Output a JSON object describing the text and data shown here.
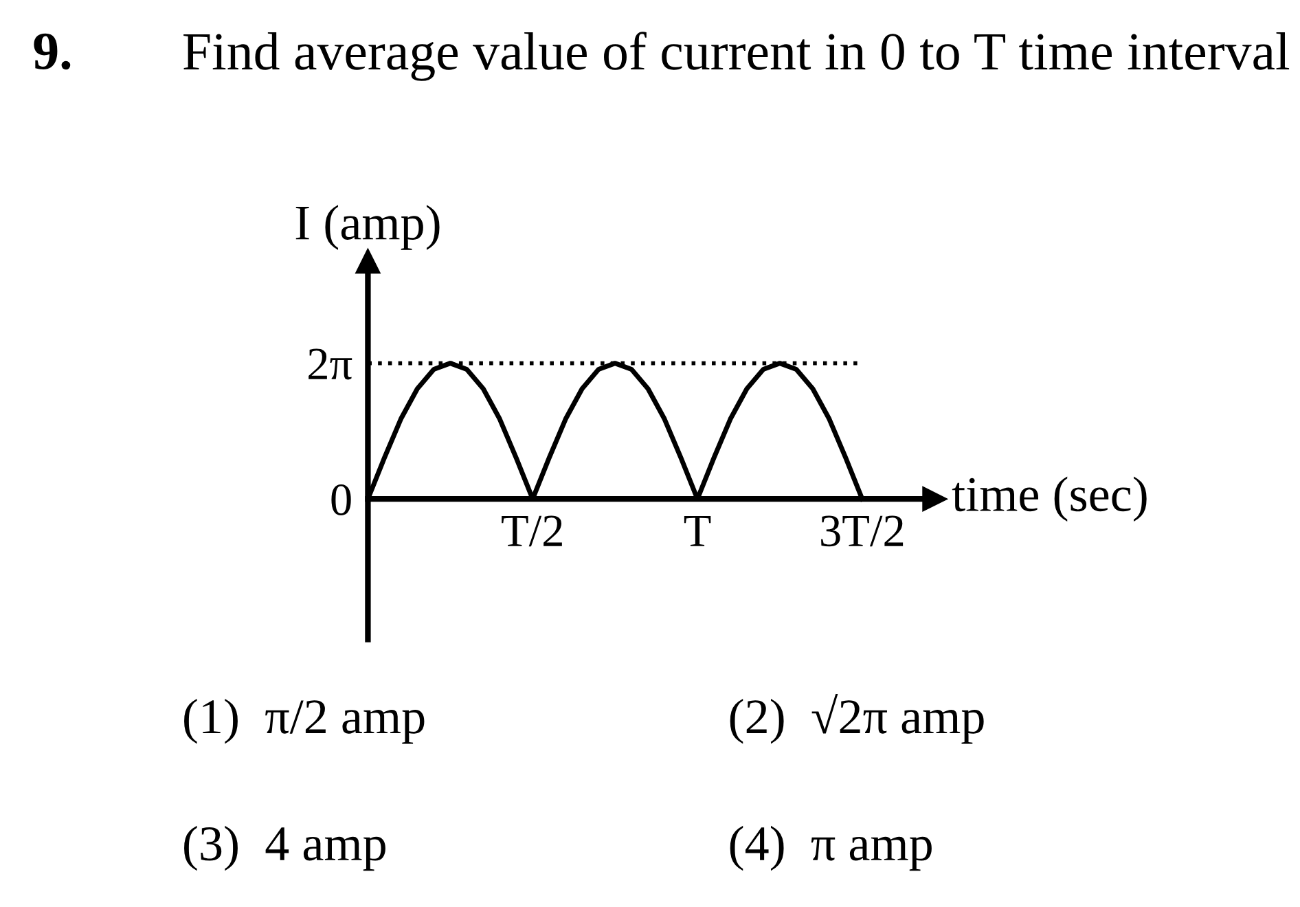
{
  "chart_data": {
    "type": "line",
    "title": "Find average value of current in 0 to T time interval",
    "xlabel": "time (sec)",
    "ylabel": "I (amp)",
    "categories": [
      null,
      null,
      null,
      null,
      null,
      null,
      null,
      null,
      null,
      null,
      "T/2",
      null,
      null,
      null,
      null,
      null,
      null,
      null,
      null,
      null,
      "T",
      null,
      null,
      null,
      null,
      null,
      null,
      null,
      null,
      null,
      "3T/2"
    ],
    "series": [
      {
        "color": "#000000",
        "values": [
          0,
          1.9,
          3.7,
          5.1,
          6.0,
          6.28,
          6.0,
          5.1,
          3.7,
          1.9,
          0,
          1.9,
          3.7,
          5.1,
          6.0,
          6.28,
          6.0,
          5.1,
          3.7,
          1.9,
          0,
          1.9,
          3.7,
          5.1,
          6.0,
          6.28,
          6.0,
          5.1,
          3.7,
          1.9,
          0
        ]
      }
    ],
    "ylim": [
      -6.5,
      11
    ],
    "yticks": [
      {
        "value": 0,
        "label": "0"
      },
      {
        "value": 6.28,
        "label": "2π"
      }
    ],
    "ref_lines": [
      {
        "axis": "y",
        "value": 6.28,
        "label": null,
        "color": "#000000",
        "line_style": "dotted"
      }
    ],
    "marker": "none",
    "line_style": "solid",
    "grid": false,
    "legend": false,
    "annotations": [
      "9.",
      "(1)  π/2 amp",
      "(2)  √2π amp",
      "(3)  4 amp",
      "(4)  π amp"
    ]
  }
}
